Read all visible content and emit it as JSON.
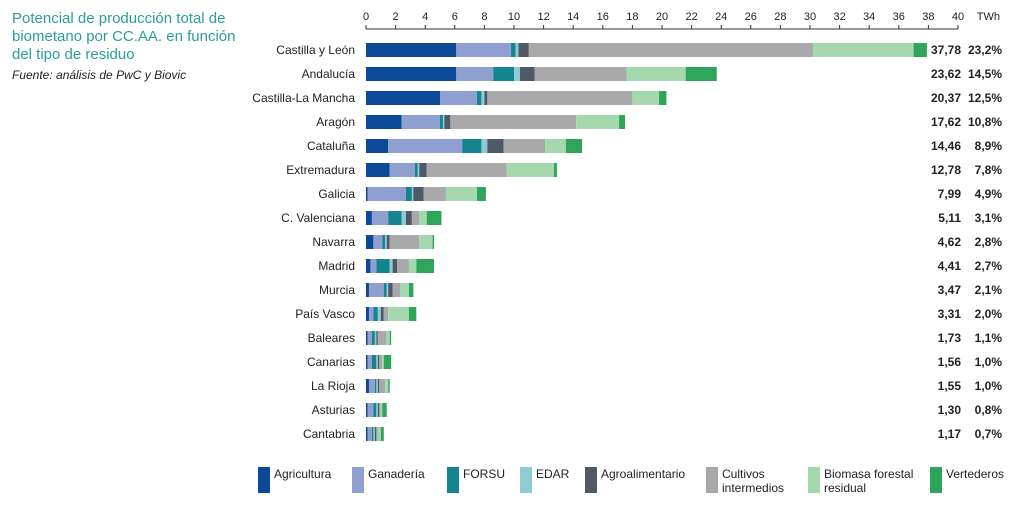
{
  "header": {
    "title": "Potencial de producción total de biometano por CC.AA. en función del tipo de residuo",
    "source": "Fuente: análisis de PwC y Biovic"
  },
  "colors": {
    "Agricultura": "#0b4a97",
    "Ganadería": "#8f9fd0",
    "FORSU": "#14858f",
    "EDAR": "#8fcbd4",
    "Agroalimentario": "#4f5966",
    "Cultivos intermedios": "#a9a9ab",
    "Biomasa forestal residual": "#a6d8b0",
    "Vertederos": "#2fa55b"
  },
  "chart_data": {
    "type": "bar",
    "orientation": "horizontal",
    "stacked": true,
    "unit_label": "TWh",
    "xlim": [
      0,
      40
    ],
    "xticks": [
      "0",
      "2",
      "4",
      "6",
      "8",
      "10",
      "12",
      "14",
      "16",
      "18",
      "20",
      "22",
      "24",
      "26",
      "28",
      "30",
      "32",
      "34",
      "36",
      "38",
      "40"
    ],
    "categories": [
      "Castilla y León",
      "Andalucía",
      "Castilla-La Mancha",
      "Aragón",
      "Cataluña",
      "Extremadura",
      "Galicia",
      "C. Valenciana",
      "Navarra",
      "Madrid",
      "Murcia",
      "País Vasco",
      "Baleares",
      "Canarias",
      "La Rioja",
      "Asturias",
      "Cantabria"
    ],
    "totals_label": [
      "37,78",
      "23,62",
      "20,37",
      "17,62",
      "14,46",
      "12,78",
      "7,99",
      "5,11",
      "4,62",
      "4,41",
      "3,47",
      "3,31",
      "1,73",
      "1,56",
      "1,55",
      "1,30",
      "1,17"
    ],
    "shares_label": [
      "23,2%",
      "14,5%",
      "12,5%",
      "10,8%",
      "8,9%",
      "7,8%",
      "4,9%",
      "3,1%",
      "2,8%",
      "2,7%",
      "2,1%",
      "2,0%",
      "1,1%",
      "1,0%",
      "1,0%",
      "0,8%",
      "0,7%"
    ],
    "series": [
      {
        "name": "Agricultura",
        "values": [
          6.1,
          6.1,
          5.0,
          2.4,
          1.5,
          1.6,
          0.1,
          0.4,
          0.5,
          0.3,
          0.2,
          0.2,
          0.1,
          0.1,
          0.2,
          0.1,
          0.1
        ]
      },
      {
        "name": "Ganadería",
        "values": [
          3.7,
          2.5,
          2.5,
          2.6,
          5.0,
          1.7,
          2.6,
          1.1,
          0.6,
          0.4,
          1.0,
          0.3,
          0.3,
          0.3,
          0.4,
          0.4,
          0.3
        ]
      },
      {
        "name": "FORSU",
        "values": [
          0.3,
          1.4,
          0.3,
          0.2,
          1.3,
          0.2,
          0.4,
          0.9,
          0.2,
          0.9,
          0.2,
          0.3,
          0.2,
          0.3,
          0.1,
          0.2,
          0.1
        ]
      },
      {
        "name": "EDAR",
        "values": [
          0.2,
          0.4,
          0.2,
          0.1,
          0.4,
          0.1,
          0.1,
          0.3,
          0.1,
          0.2,
          0.1,
          0.2,
          0.1,
          0.1,
          0.1,
          0.1,
          0.1
        ]
      },
      {
        "name": "Agroalimentario",
        "values": [
          0.7,
          1.0,
          0.2,
          0.4,
          1.1,
          0.5,
          0.7,
          0.4,
          0.2,
          0.3,
          0.3,
          0.2,
          0.1,
          0.1,
          0.1,
          0.1,
          0.1
        ]
      },
      {
        "name": "Cultivos intermedios",
        "values": [
          19.2,
          6.2,
          9.8,
          8.5,
          2.8,
          5.4,
          1.5,
          0.5,
          2.0,
          0.8,
          0.5,
          0.3,
          0.6,
          0.2,
          0.4,
          0.1,
          0.1
        ]
      },
      {
        "name": "Biomasa forestal residual",
        "values": [
          6.8,
          4.0,
          1.8,
          2.9,
          1.4,
          3.2,
          2.1,
          0.5,
          0.9,
          0.5,
          0.6,
          1.4,
          0.2,
          0.1,
          0.2,
          0.1,
          0.2
        ]
      },
      {
        "name": "Vertederos",
        "values": [
          0.9,
          2.1,
          0.5,
          0.4,
          1.1,
          0.2,
          0.6,
          1.0,
          0.1,
          1.2,
          0.3,
          0.5,
          0.1,
          0.5,
          0.1,
          0.3,
          0.2
        ]
      }
    ],
    "legend": {
      "placement": "bottom",
      "labels": [
        "Agricultura",
        "Ganadería",
        "FORSU",
        "EDAR",
        "Agroalimentario",
        "Cultivos intermedios",
        "Biomasa forestal residual",
        "Vertederos"
      ]
    }
  }
}
